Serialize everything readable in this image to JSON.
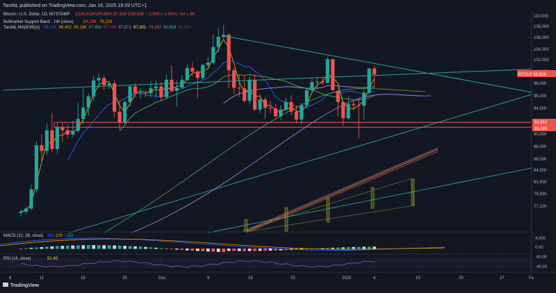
{
  "header": {
    "published_line": "TaroNL published on TradingView.com, Jan 16, 2025 19:29 UTC+1"
  },
  "legend": {
    "symbol_line": "Bitcoin / U.S. Dollar, 1D, BITSTAMP",
    "ohlc": {
      "o": "O100,512",
      "h": "H100,860",
      "l": "L97,319",
      "c": "C99,508",
      "chg": "−1,004 (−1.00%)",
      "vol": "Vol 1.3K"
    },
    "line2_label": "Bullmarket Support Band · 1W (close)",
    "line2_values": [
      "83,288",
      "79,226"
    ],
    "line3_label": "TaroNL MA(8/39)(s)",
    "line3_values": [
      "96,121",
      "96,402",
      "96,196",
      "97,459",
      "97,240",
      "87,571",
      "87,301",
      "74,192",
      "50,916",
      "90,380"
    ],
    "line3_colors": [
      "#2962ff",
      "#f7a600",
      "#ff9800",
      "#4caf50",
      "#e91e63",
      "#b388ff",
      "#ffeb3b",
      "#ef5350",
      "#26c6da",
      "#4a4a4a"
    ]
  },
  "price_tag": {
    "symbol": "BTCUSD",
    "value": "99,508"
  },
  "level_tags": [
    "91,857",
    "91,085"
  ],
  "branding": {
    "logo_text": "TradingView"
  },
  "colors": {
    "background": "#131722",
    "up": "#26a69a",
    "down": "#ef5350",
    "trendline": "#26a69a",
    "support_line": "#ef5350",
    "grid": "#1f2433"
  },
  "chart_data": {
    "type": "candlestick",
    "title": "Bitcoin / U.S. Dollar, 1D, BITSTAMP",
    "y_ticks": [
      110000,
      108000,
      106000,
      104000,
      102000,
      100000,
      98000,
      96000,
      94000,
      92000,
      90000,
      88000,
      86000,
      84000,
      81930,
      79830,
      77100
    ],
    "y_tick_labels": [
      "110,000",
      "108,000",
      "106,000",
      "104,000",
      "102,000",
      "100,000",
      "98,000",
      "96,000",
      "94,000",
      "92,000",
      "90,000",
      "88,000",
      "86,000",
      "84,000",
      "81,930",
      "79,830",
      "77,100"
    ],
    "x_tick_labels": [
      "6",
      "11",
      "18",
      "25",
      "Dec",
      "9",
      "16",
      "23",
      "2025",
      "6",
      "13",
      "20",
      "27",
      "Fe"
    ],
    "candles": [
      [
        75600,
        76300,
        74800,
        75900
      ],
      [
        75900,
        76900,
        75300,
        76600
      ],
      [
        76600,
        81500,
        76200,
        80600
      ],
      [
        80600,
        88800,
        80000,
        88200
      ],
      [
        88200,
        89900,
        85200,
        87300
      ],
      [
        87300,
        91700,
        86600,
        90600
      ],
      [
        90600,
        93300,
        87100,
        87600
      ],
      [
        87600,
        91900,
        86700,
        91100
      ],
      [
        91100,
        91800,
        88700,
        90600
      ],
      [
        90600,
        91500,
        89300,
        89900
      ],
      [
        89900,
        92100,
        89500,
        90500
      ],
      [
        90500,
        94900,
        90200,
        92400
      ],
      [
        92400,
        97200,
        91600,
        94100
      ],
      [
        94100,
        96400,
        92900,
        95900
      ],
      [
        95900,
        99300,
        95200,
        98500
      ],
      [
        98500,
        99700,
        97200,
        98900
      ],
      [
        98900,
        99400,
        96900,
        97700
      ],
      [
        97700,
        98400,
        97100,
        98000
      ],
      [
        98000,
        98500,
        92600,
        93500
      ],
      [
        93500,
        95200,
        90700,
        91800
      ],
      [
        91800,
        95200,
        91500,
        95000
      ],
      [
        95000,
        97700,
        94300,
        97500
      ],
      [
        97500,
        98100,
        95800,
        96400
      ],
      [
        96400,
        97200,
        95600,
        96500
      ],
      [
        96500,
        96900,
        95800,
        96400
      ],
      [
        96400,
        98400,
        95800,
        97200
      ],
      [
        97200,
        98500,
        95700,
        97500
      ],
      [
        97500,
        98200,
        95200,
        95800
      ],
      [
        95800,
        99500,
        95400,
        98600
      ],
      [
        98600,
        101000,
        96700,
        96800
      ],
      [
        96800,
        98500,
        94300,
        97300
      ],
      [
        97300,
        99400,
        97200,
        98600
      ],
      [
        98600,
        101100,
        98400,
        100600
      ],
      [
        100600,
        101600,
        99200,
        100000
      ],
      [
        100000,
        100300,
        95600,
        98900
      ],
      [
        98900,
        101300,
        98600,
        101100
      ],
      [
        101100,
        102600,
        100700,
        101500
      ],
      [
        101500,
        106500,
        101200,
        104400
      ],
      [
        104400,
        107700,
        103300,
        106100
      ],
      [
        106100,
        108300,
        105500,
        106500
      ],
      [
        106500,
        106700,
        97200,
        100200
      ],
      [
        100200,
        100600,
        96300,
        97300
      ],
      [
        97300,
        99500,
        95800,
        97200
      ],
      [
        97200,
        99400,
        94900,
        95200
      ],
      [
        95200,
        99100,
        94700,
        98600
      ],
      [
        98600,
        99500,
        93600,
        93800
      ],
      [
        93800,
        96200,
        93300,
        95400
      ],
      [
        95400,
        95800,
        92400,
        94100
      ],
      [
        94100,
        95200,
        93200,
        94000
      ],
      [
        94000,
        94600,
        92600,
        92800
      ],
      [
        92800,
        94500,
        92200,
        93800
      ],
      [
        93800,
        95700,
        93500,
        95000
      ],
      [
        95000,
        96100,
        92900,
        93500
      ],
      [
        93500,
        94400,
        91700,
        92300
      ],
      [
        92300,
        94900,
        91600,
        94500
      ],
      [
        94500,
        97200,
        94000,
        96900
      ],
      [
        96900,
        98800,
        96400,
        98200
      ],
      [
        98200,
        99100,
        97000,
        98300
      ],
      [
        98300,
        98900,
        97700,
        98100
      ],
      [
        98100,
        102500,
        98000,
        102100
      ],
      [
        102100,
        102200,
        96800,
        96900
      ],
      [
        96800,
        97400,
        92800,
        95000
      ],
      [
        95000,
        95200,
        91300,
        92500
      ],
      [
        92500,
        95900,
        92200,
        94700
      ],
      [
        94700,
        95300,
        93700,
        94500
      ],
      [
        94500,
        95400,
        89300,
        94400
      ],
      [
        94400,
        97000,
        92300,
        96500
      ],
      [
        96500,
        100600,
        96200,
        100500
      ],
      [
        100500,
        100900,
        97300,
        99500
      ]
    ],
    "annotations": {
      "descending_trendline": {
        "from": {
          "bar": 39,
          "price": 106300
        },
        "to": {
          "bar": 80,
          "price": 97900
        }
      },
      "near_horizontal_trendline": {
        "from": {
          "bar": 0,
          "price": 96900
        },
        "to": {
          "bar": 80,
          "price": 100400
        }
      },
      "support_levels": [
        91857,
        91085
      ]
    }
  }
}
